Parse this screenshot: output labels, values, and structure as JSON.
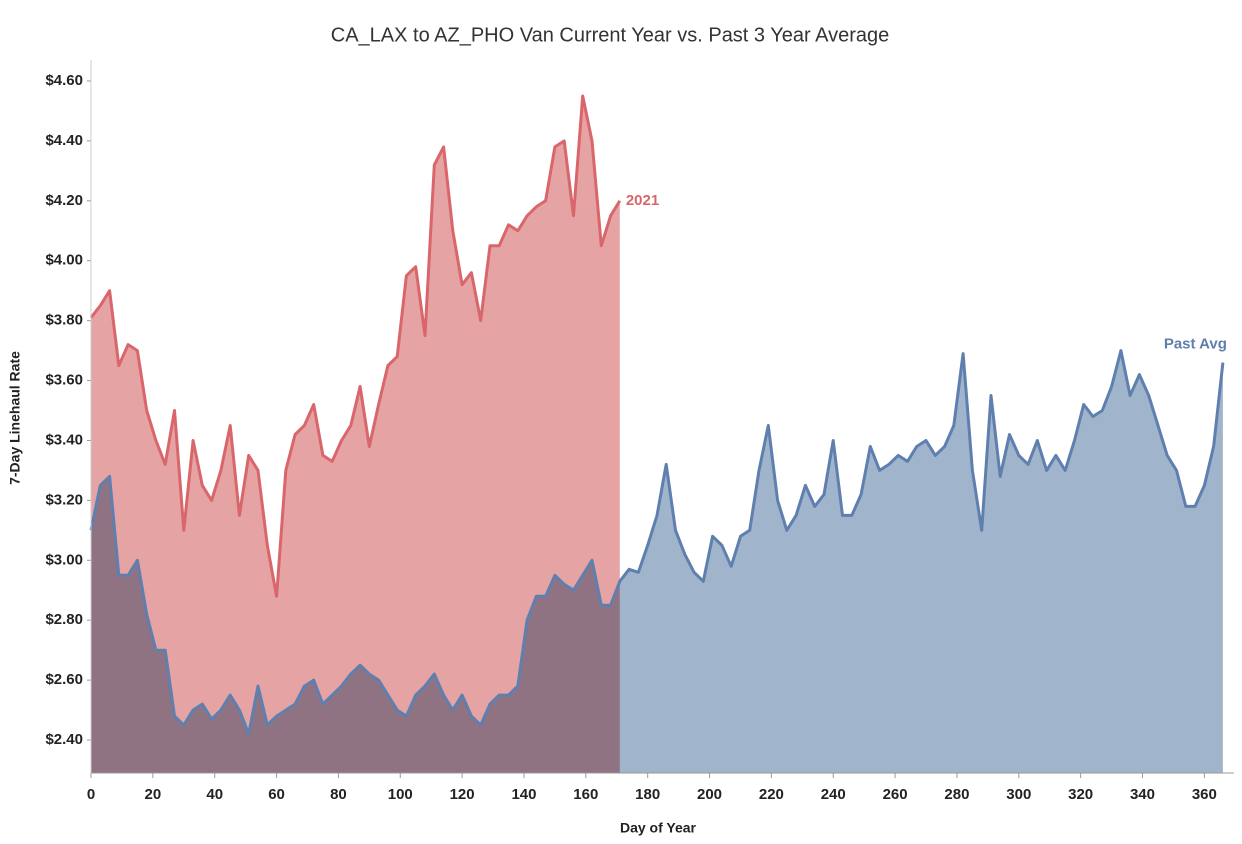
{
  "chart_data": {
    "type": "area",
    "title": "CA_LAX to AZ_PHO Van Current Year vs. Past 3 Year Average",
    "x_label": "Day of Year",
    "y_label": "7-Day Linehaul Rate",
    "xlim": [
      0,
      367
    ],
    "ylim": [
      2.29,
      4.65
    ],
    "xticks": [
      0,
      20,
      40,
      60,
      80,
      100,
      120,
      140,
      160,
      180,
      200,
      220,
      240,
      260,
      280,
      300,
      320,
      340,
      360
    ],
    "yticks": [
      {
        "value": 2.4,
        "label": "$2.40"
      },
      {
        "value": 2.6,
        "label": "$2.60"
      },
      {
        "value": 2.8,
        "label": "$2.80"
      },
      {
        "value": 3.0,
        "label": "$3.00"
      },
      {
        "value": 3.2,
        "label": "$3.20"
      },
      {
        "value": 3.4,
        "label": "$3.40"
      },
      {
        "value": 3.6,
        "label": "$3.60"
      },
      {
        "value": 3.8,
        "label": "$3.80"
      },
      {
        "value": 4.0,
        "label": "$4.00"
      },
      {
        "value": 4.2,
        "label": "$4.20"
      },
      {
        "value": 4.4,
        "label": "$4.40"
      },
      {
        "value": 4.6,
        "label": "$4.60"
      }
    ],
    "x": [
      0,
      3,
      6,
      9,
      12,
      15,
      18,
      21,
      24,
      27,
      30,
      33,
      36,
      39,
      42,
      45,
      48,
      51,
      54,
      57,
      60,
      63,
      66,
      69,
      72,
      75,
      78,
      81,
      84,
      87,
      90,
      93,
      96,
      99,
      102,
      105,
      108,
      111,
      114,
      117,
      120,
      123,
      126,
      129,
      132,
      135,
      138,
      141,
      144,
      147,
      150,
      153,
      156,
      159,
      162,
      165,
      168,
      171,
      174,
      177,
      180,
      183,
      186,
      189,
      192,
      195,
      198,
      201,
      204,
      207,
      210,
      213,
      216,
      219,
      222,
      225,
      228,
      231,
      234,
      237,
      240,
      243,
      246,
      249,
      252,
      255,
      258,
      261,
      264,
      267,
      270,
      273,
      276,
      279,
      282,
      285,
      288,
      291,
      294,
      297,
      300,
      303,
      306,
      309,
      312,
      315,
      318,
      321,
      324,
      327,
      330,
      333,
      336,
      339,
      342,
      345,
      348,
      351,
      354,
      357,
      360,
      363,
      366
    ],
    "series": [
      {
        "name": "Past Avg",
        "color": "#5f7fae",
        "fill": "#a0b4cc",
        "values": [
          3.1,
          3.25,
          3.28,
          2.95,
          2.95,
          3.0,
          2.82,
          2.7,
          2.7,
          2.48,
          2.45,
          2.5,
          2.52,
          2.47,
          2.5,
          2.55,
          2.5,
          2.42,
          2.58,
          2.45,
          2.48,
          2.5,
          2.52,
          2.58,
          2.6,
          2.52,
          2.55,
          2.58,
          2.62,
          2.65,
          2.62,
          2.6,
          2.55,
          2.5,
          2.48,
          2.55,
          2.58,
          2.62,
          2.55,
          2.5,
          2.55,
          2.48,
          2.45,
          2.52,
          2.55,
          2.55,
          2.58,
          2.8,
          2.88,
          2.88,
          2.95,
          2.92,
          2.9,
          2.95,
          3.0,
          2.85,
          2.85,
          2.93,
          2.97,
          2.96,
          3.05,
          3.15,
          3.32,
          3.1,
          3.02,
          2.96,
          2.93,
          3.08,
          3.05,
          2.98,
          3.08,
          3.1,
          3.3,
          3.45,
          3.2,
          3.1,
          3.15,
          3.25,
          3.18,
          3.22,
          3.4,
          3.15,
          3.15,
          3.22,
          3.38,
          3.3,
          3.32,
          3.35,
          3.33,
          3.38,
          3.4,
          3.35,
          3.38,
          3.45,
          3.69,
          3.3,
          3.1,
          3.55,
          3.28,
          3.42,
          3.35,
          3.32,
          3.4,
          3.3,
          3.35,
          3.3,
          3.4,
          3.52,
          3.48,
          3.5,
          3.58,
          3.7,
          3.55,
          3.62,
          3.55,
          3.45,
          3.35,
          3.3,
          3.18,
          3.18,
          3.25,
          3.38,
          3.66
        ]
      },
      {
        "name": "2021",
        "color": "#d9666b",
        "fill": "#e5a3a4",
        "values": [
          3.81,
          3.85,
          3.9,
          3.65,
          3.72,
          3.7,
          3.5,
          3.4,
          3.32,
          3.5,
          3.1,
          3.4,
          3.25,
          3.2,
          3.3,
          3.45,
          3.15,
          3.35,
          3.3,
          3.05,
          2.88,
          3.3,
          3.42,
          3.45,
          3.52,
          3.35,
          3.33,
          3.4,
          3.45,
          3.58,
          3.38,
          3.52,
          3.65,
          3.68,
          3.95,
          3.98,
          3.75,
          4.32,
          4.38,
          4.1,
          3.92,
          3.96,
          3.8,
          4.05,
          4.05,
          4.12,
          4.1,
          4.15,
          4.18,
          4.2,
          4.38,
          4.4,
          4.15,
          4.55,
          4.4,
          4.05,
          4.15,
          4.2,
          null,
          null,
          null,
          null,
          null,
          null,
          null,
          null,
          null,
          null,
          null,
          null,
          null,
          null,
          null,
          null,
          null,
          null,
          null,
          null,
          null,
          null,
          null,
          null,
          null,
          null,
          null,
          null,
          null,
          null,
          null,
          null,
          null,
          null,
          null,
          null,
          null,
          null,
          null,
          null,
          null,
          null,
          null,
          null,
          null,
          null,
          null,
          null,
          null,
          null,
          null,
          null,
          null,
          null,
          null,
          null,
          null,
          null,
          null,
          null,
          null,
          null,
          null,
          null,
          null
        ]
      }
    ]
  }
}
